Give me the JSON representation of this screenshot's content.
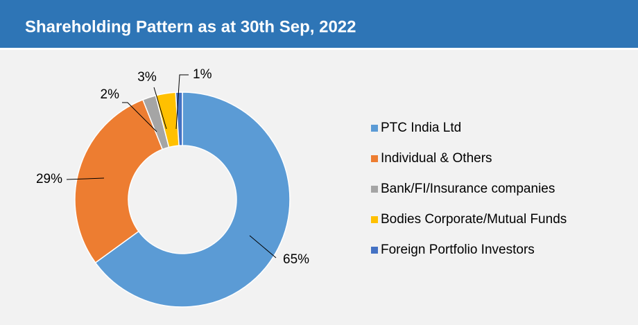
{
  "chart_data": {
    "type": "pie",
    "title": "Shareholding Pattern as at 30th Sep, 2022",
    "categories": [
      "PTC India Ltd",
      "Individual & Others",
      "Bank/FI/Insurance companies",
      "Bodies Corporate/Mutual Funds",
      "Foreign Portfolio Investors"
    ],
    "values": [
      65,
      29,
      2,
      3,
      1
    ],
    "value_labels": [
      "65%",
      "29%",
      "2%",
      "3%",
      "1%"
    ],
    "colors": [
      "#5b9bd5",
      "#ed7d31",
      "#a5a5a5",
      "#ffc000",
      "#4472c4"
    ],
    "legend": "right"
  }
}
